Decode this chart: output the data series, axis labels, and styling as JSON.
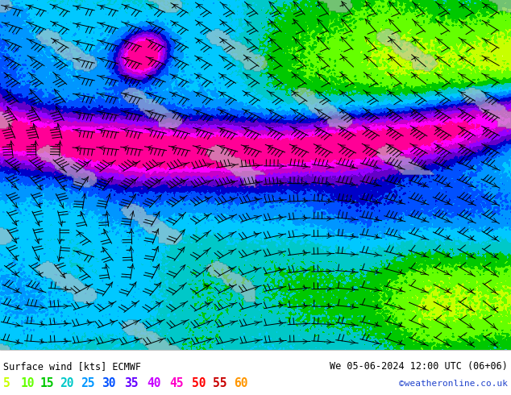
{
  "title_left": "Surface wind [kts] ECMWF",
  "title_right": "We 05-06-2024 12:00 UTC (06+06)",
  "credit": "©weatheronline.co.uk",
  "legend_values": [
    "5",
    "10",
    "15",
    "20",
    "25",
    "30",
    "35",
    "40",
    "45",
    "50",
    "55",
    "60"
  ],
  "legend_colors": [
    "#c8ff00",
    "#64ff00",
    "#00c800",
    "#00c8c8",
    "#0096ff",
    "#0050ff",
    "#6400ff",
    "#c800ff",
    "#ff00c8",
    "#ff0000",
    "#c80000",
    "#ff9600"
  ],
  "colormap_colors": [
    "#ffff96",
    "#c8ff00",
    "#64ff00",
    "#00c800",
    "#00c8c8",
    "#00c8ff",
    "#0096ff",
    "#0050ff",
    "#0000c8",
    "#6400c8",
    "#9600ff",
    "#c800c8",
    "#ff00ff",
    "#ff0096",
    "#ff0000",
    "#c80000"
  ],
  "colormap_levels": [
    0,
    5,
    10,
    15,
    20,
    25,
    30,
    35,
    40,
    45,
    50,
    55,
    60,
    65,
    70,
    80,
    100
  ],
  "bg_color": "#ffffff",
  "fig_width": 6.34,
  "fig_height": 4.9,
  "dpi": 100
}
